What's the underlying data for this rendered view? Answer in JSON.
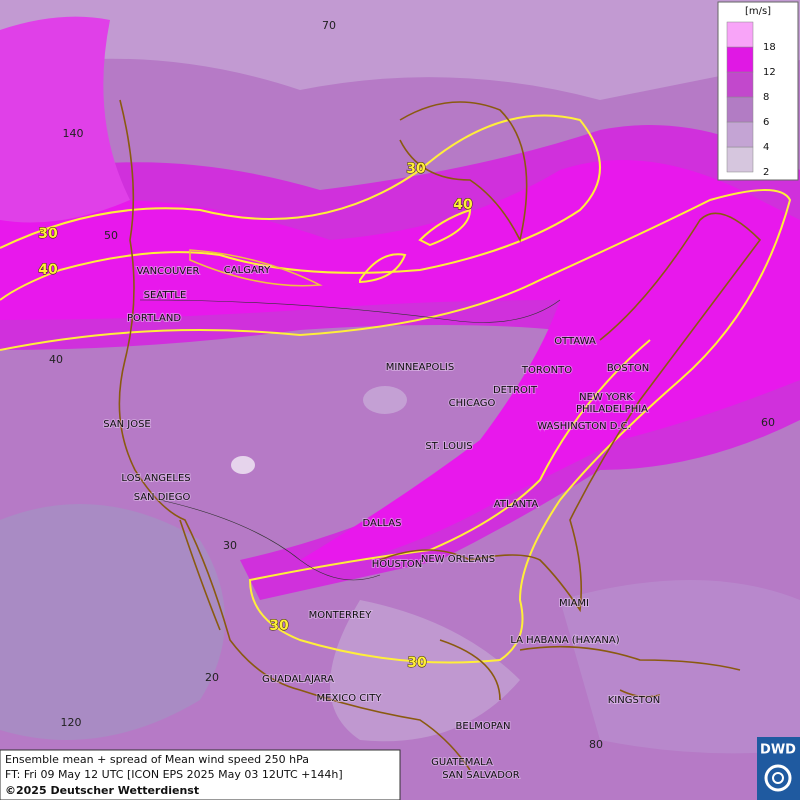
{
  "map": {
    "cities": [
      "VANCOUVER",
      "CALGARY",
      "SEATTLE",
      "PORTLAND",
      "MINNEAPOLIS",
      "OTTAWA",
      "TORONTO",
      "DETROIT",
      "BOSTON",
      "CHICAGO",
      "NEW YORK",
      "PHILADELPHIA",
      "WASHINGTON D.C.",
      "SAN JOSE",
      "ST. LOUIS",
      "LOS ANGELES",
      "SAN DIEGO",
      "ATLANTA",
      "DALLAS",
      "HOUSTON",
      "NEW ORLEANS",
      "MIAMI",
      "MONTERREY",
      "LA HABANA (HAYANA)",
      "GUADALAJARA",
      "MEXICO CITY",
      "KINGSTON",
      "BELMOPAN",
      "GUATEMALA",
      "SAN SALVADOR"
    ],
    "grid_labels": [
      70,
      140,
      50,
      40,
      30,
      20,
      120,
      60,
      80
    ],
    "contour_labels": [
      30,
      40,
      30,
      40,
      30,
      30
    ]
  },
  "legend": {
    "unit": "[m/s]",
    "levels": [
      2,
      4,
      6,
      8,
      12,
      18
    ],
    "colors": [
      "#d6c6de",
      "#c4a4d4",
      "#b27cc4",
      "#c248cc",
      "#e018e4",
      "#f8a4f8"
    ]
  },
  "footer": {
    "line1": "Ensemble mean + spread of Mean wind speed 250 hPa",
    "line2": "FT: Fri 09 May 12 UTC [ICON EPS 2025 May 03 12UTC +144h]",
    "line3": "©2025 Deutscher Wetterdienst"
  },
  "logo": "DWD"
}
